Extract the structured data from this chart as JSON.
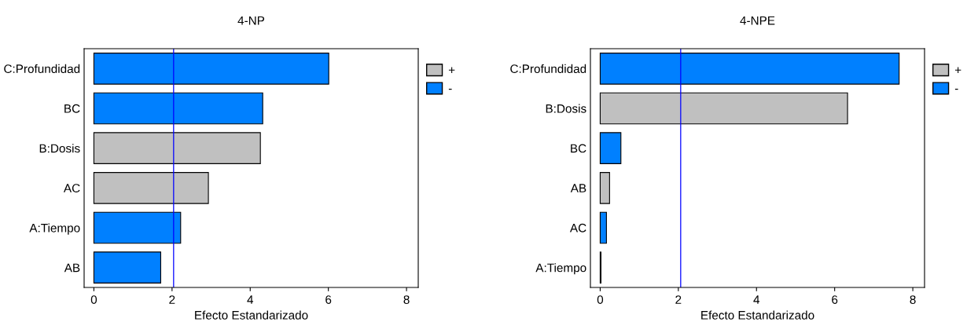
{
  "chart_data": [
    {
      "type": "bar",
      "orientation": "horizontal",
      "title": "4-NP",
      "xlabel": "Efecto Estandarizado",
      "categories": [
        "C:Profundidad",
        "BC",
        "B:Dosis",
        "AC",
        "A:Tiempo",
        "AB"
      ],
      "series": [
        {
          "name": "+",
          "color": "#c0c0c0",
          "values": [
            null,
            null,
            4.26,
            2.93,
            null,
            null
          ]
        },
        {
          "name": "-",
          "color": "#0080ff",
          "values": [
            6.01,
            4.32,
            null,
            null,
            2.22,
            1.71
          ]
        }
      ],
      "xlim": [
        -0.25,
        8.3
      ],
      "xticks": [
        0,
        2,
        4,
        6,
        8
      ],
      "ref_lines": [
        {
          "axis": "x",
          "value": 2.04,
          "color": "#0000ff"
        }
      ],
      "legend": "right",
      "grid": false
    },
    {
      "type": "bar",
      "orientation": "horizontal",
      "title": "4-NPE",
      "xlabel": "Efecto Estandarizado",
      "categories": [
        "C:Profundidad",
        "B:Dosis",
        "BC",
        "AB",
        "AC",
        "A:Tiempo"
      ],
      "series": [
        {
          "name": "+",
          "color": "#c0c0c0",
          "values": [
            null,
            6.33,
            null,
            0.24,
            null,
            null
          ]
        },
        {
          "name": "-",
          "color": "#0080ff",
          "values": [
            7.65,
            null,
            0.53,
            null,
            0.16,
            0.02
          ]
        }
      ],
      "xlim": [
        -0.25,
        8.3
      ],
      "xticks": [
        0,
        2,
        4,
        6,
        8
      ],
      "ref_lines": [
        {
          "axis": "x",
          "value": 2.06,
          "color": "#0000ff"
        }
      ],
      "legend": "right",
      "grid": false
    }
  ]
}
